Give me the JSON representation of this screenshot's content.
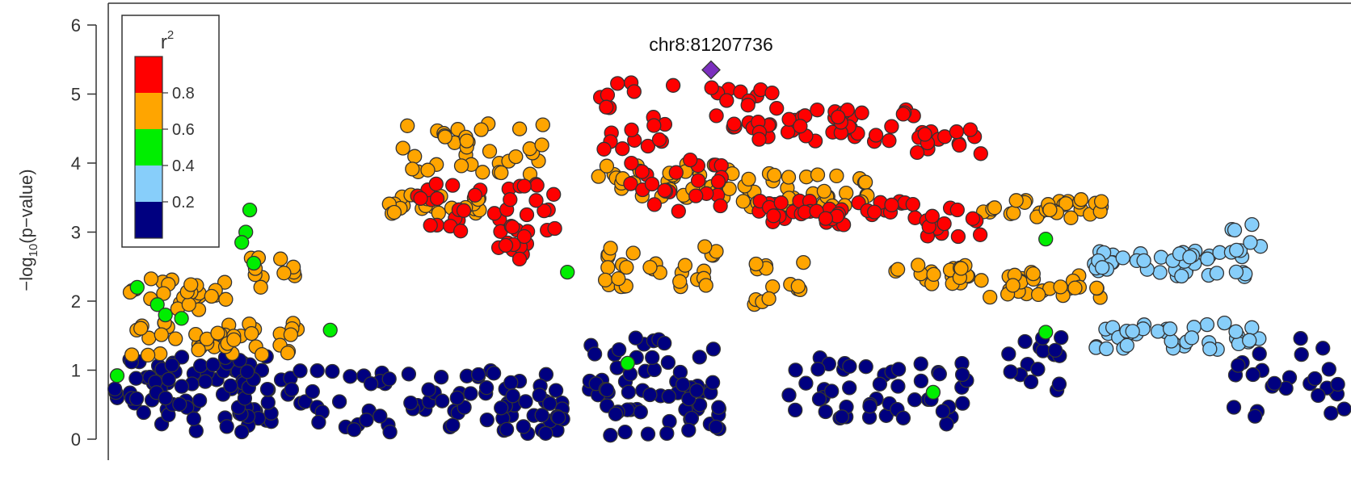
{
  "chart_data": {
    "type": "scatter",
    "title": "",
    "ylabel_main": "−log",
    "ylabel_sub": "10",
    "ylabel_tail": "(p−value)",
    "xlabel": "",
    "ylim": [
      0,
      6.1
    ],
    "yticks": [
      "0",
      "1",
      "2",
      "3",
      "4",
      "5",
      "6"
    ],
    "grid": false,
    "legend": {
      "placement": "top-left",
      "title": "r",
      "title_sup": "2",
      "labels": [
        "0.8",
        "0.6",
        "0.4",
        "0.2"
      ],
      "bins": [
        {
          "range": "0.8–1.0",
          "color": "#ff0000"
        },
        {
          "range": "0.6–0.8",
          "color": "#ffa500"
        },
        {
          "range": "0.4–0.6",
          "color": "#00ee00"
        },
        {
          "range": "0.2–0.4",
          "color": "#87cefa"
        },
        {
          "range": "0.0–0.2",
          "color": "#000080"
        }
      ]
    },
    "lead_snp": {
      "label": "chr8:81207736",
      "y": 5.35,
      "color": "#7b2fbe",
      "shape": "diamond"
    },
    "point_style": {
      "outline": "#333333",
      "colors": {
        "red": "#ff0000",
        "orange": "#ffa500",
        "green": "#00ee00",
        "lightblue": "#87cefa",
        "navy": "#000080"
      }
    },
    "x_relative_to_lead_kb_note_omitted": true,
    "series": [
      {
        "group": "navy",
        "bands": [
          [
            0,
            240,
            0.55,
            0.45
          ],
          [
            0,
            240,
            0.85,
            0.35
          ],
          [
            240,
            560,
            0.55,
            0.45
          ],
          [
            480,
            560,
            0.35,
            0.3
          ],
          [
            590,
            760,
            1.05,
            0.45
          ],
          [
            590,
            760,
            0.45,
            0.4
          ],
          [
            840,
            960,
            0.75,
            0.45
          ],
          [
            940,
            1070,
            0.65,
            0.45
          ],
          [
            1100,
            1180,
            1.1,
            0.4
          ],
          [
            1380,
            1560,
            0.9,
            0.6
          ]
        ]
      },
      {
        "group": "orange",
        "bands": [
          [
            20,
            230,
            1.45,
            0.25
          ],
          [
            20,
            150,
            2.1,
            0.25
          ],
          [
            170,
            230,
            2.45,
            0.25
          ],
          [
            360,
            540,
            4.2,
            0.4
          ],
          [
            340,
            460,
            3.4,
            0.15
          ],
          [
            600,
            780,
            3.75,
            0.25
          ],
          [
            610,
            760,
            2.5,
            0.3
          ],
          [
            770,
            940,
            3.6,
            0.25
          ],
          [
            960,
            1080,
            2.4,
            0.15
          ],
          [
            1080,
            1230,
            3.35,
            0.15
          ],
          [
            1090,
            1230,
            2.25,
            0.2
          ],
          [
            790,
            860,
            2.3,
            0.35
          ]
        ]
      },
      {
        "group": "red",
        "bands": [
          [
            370,
            560,
            3.35,
            0.35
          ],
          [
            600,
            700,
            4.7,
            0.5
          ],
          [
            640,
            760,
            3.7,
            0.4
          ],
          [
            740,
            830,
            4.8,
            0.3
          ],
          [
            800,
            1000,
            4.55,
            0.25
          ],
          [
            800,
            1000,
            3.3,
            0.2
          ],
          [
            1010,
            1080,
            3.1,
            0.25
          ],
          [
            1000,
            1080,
            4.3,
            0.2
          ],
          [
            470,
            520,
            2.75,
            0.25
          ]
        ]
      },
      {
        "group": "lightblue",
        "bands": [
          [
            1220,
            1430,
            2.55,
            0.2
          ],
          [
            1220,
            1430,
            1.5,
            0.2
          ],
          [
            1390,
            1430,
            2.9,
            0.25
          ]
        ]
      },
      {
        "group": "green",
        "points": [
          [
            5,
            0.92
          ],
          [
            30,
            2.2
          ],
          [
            55,
            1.95
          ],
          [
            65,
            1.8
          ],
          [
            85,
            1.75
          ],
          [
            170,
            3.32
          ],
          [
            165,
            3.0
          ],
          [
            160,
            2.85
          ],
          [
            175,
            2.55
          ],
          [
            270,
            1.58
          ],
          [
            565,
            2.42
          ],
          [
            640,
            1.1
          ],
          [
            1020,
            0.68
          ],
          [
            1160,
            1.55
          ],
          [
            1160,
            2.9
          ]
        ]
      }
    ]
  }
}
